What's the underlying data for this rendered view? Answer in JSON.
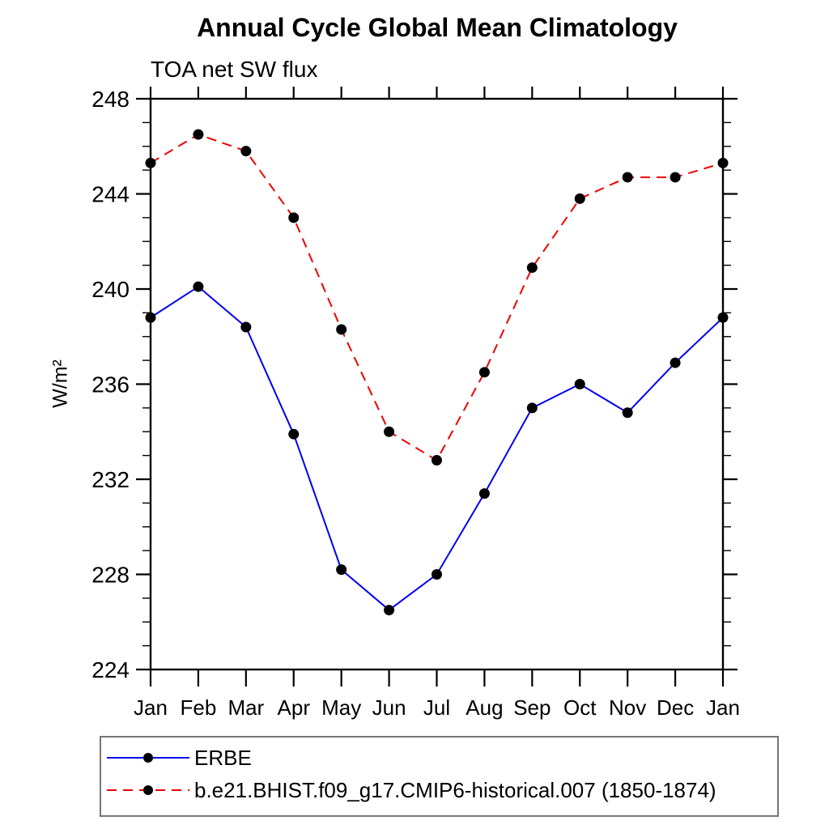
{
  "header": {
    "title": "Annual Cycle Global Mean Climatology",
    "subtitle": "TOA net SW flux"
  },
  "chart_data": {
    "type": "line",
    "categories": [
      "Jan",
      "Feb",
      "Mar",
      "Apr",
      "May",
      "Jun",
      "Jul",
      "Aug",
      "Sep",
      "Oct",
      "Nov",
      "Dec",
      "Jan"
    ],
    "xlabel": "",
    "ylabel": "W/m²",
    "ylim": [
      224,
      248
    ],
    "ytick_labels": [
      "224",
      "228",
      "232",
      "236",
      "240",
      "244",
      "248"
    ],
    "ytick_major": [
      224,
      228,
      232,
      236,
      240,
      244,
      248
    ],
    "ytick_minor_step": 1,
    "grid": false,
    "legend_position": "bottom",
    "series": [
      {
        "name": "ERBE",
        "color": "#0000ee",
        "line_style": "solid",
        "marker": "circle",
        "marker_color": "#000000",
        "values": [
          238.8,
          240.1,
          238.4,
          233.9,
          228.2,
          226.5,
          228.0,
          231.4,
          235.0,
          236.0,
          234.8,
          236.9,
          238.8
        ]
      },
      {
        "name": "b.e21.BHIST.f09_g17.CMIP6-historical.007 (1850-1874)",
        "color": "#ee0000",
        "line_style": "dashed",
        "marker": "circle",
        "marker_color": "#000000",
        "values": [
          245.3,
          246.5,
          245.8,
          243.0,
          238.3,
          234.0,
          232.8,
          236.5,
          240.9,
          243.8,
          244.7,
          244.7,
          245.3
        ]
      }
    ]
  },
  "colors": {
    "axis": "#000000",
    "text": "#000000",
    "background": "#ffffff",
    "erbe_line": "#0000ee",
    "model_line": "#ee0000"
  }
}
